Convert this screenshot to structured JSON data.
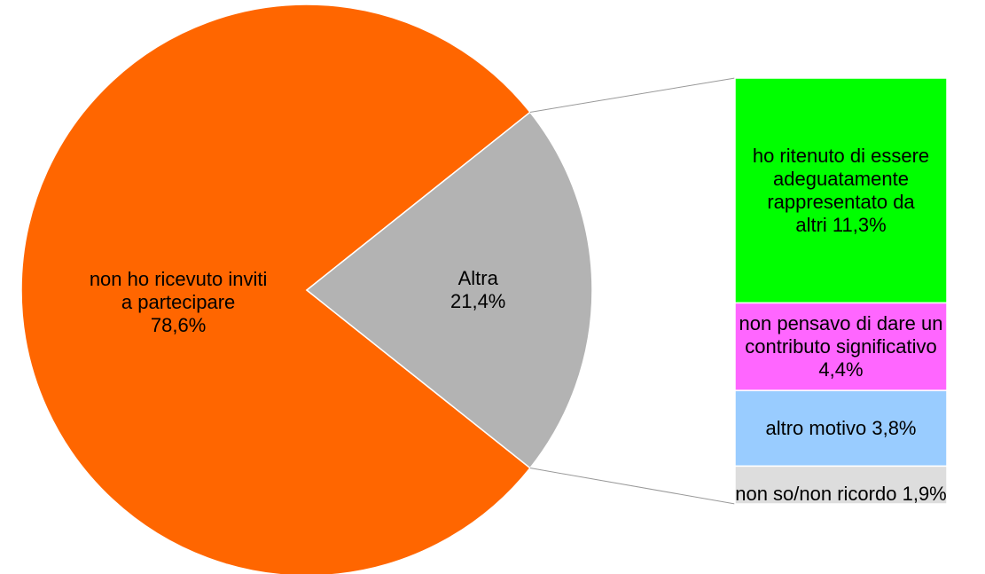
{
  "chart_data": {
    "type": "pie",
    "categories": [
      "non ho ricevuto inviti a partecipare",
      "Altra"
    ],
    "values": [
      78.6,
      21.4
    ],
    "value_labels": [
      "78,6%",
      "21,4%"
    ],
    "colors": [
      "#ff6600",
      "#b3b3b3"
    ],
    "breakdown": {
      "categories": [
        "ho ritenuto di essere adeguatamente rappresentato da altri",
        "non pensavo di dare un contributo significativo",
        "altro motivo",
        "non so/non ricordo"
      ],
      "values": [
        11.3,
        4.4,
        3.8,
        1.9
      ],
      "value_labels": [
        "11,3%",
        "4,4%",
        "3,8%",
        "1,9%"
      ],
      "colors": [
        "#00ff00",
        "#ff66ff",
        "#99ccff",
        "#dddddd"
      ]
    }
  }
}
